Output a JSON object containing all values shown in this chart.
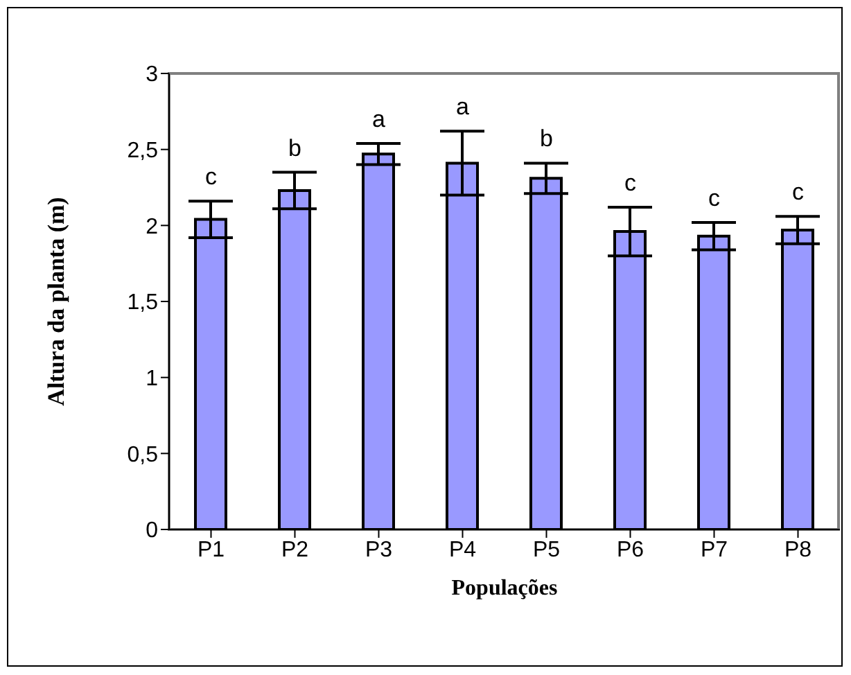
{
  "chart_data": {
    "type": "bar",
    "xlabel": "Populações",
    "ylabel": "Altura da planta (m)",
    "categories": [
      "P1",
      "P2",
      "P3",
      "P4",
      "P5",
      "P6",
      "P7",
      "P8"
    ],
    "values": [
      2.04,
      2.23,
      2.47,
      2.41,
      2.31,
      1.96,
      1.93,
      1.97
    ],
    "errors": [
      0.12,
      0.12,
      0.07,
      0.21,
      0.1,
      0.16,
      0.09,
      0.09
    ],
    "color": "#9999ff",
    "ylim": [
      0,
      3
    ],
    "yticks": [
      0,
      {
        "value": 0.5,
        "label": "0,5"
      },
      1,
      {
        "value": 1.5,
        "label": "1,5"
      },
      2,
      {
        "value": 2.5,
        "label": "2,5"
      },
      3
    ],
    "grid": false,
    "legend": false,
    "annotations": [
      {
        "text": "c",
        "x": "P1",
        "y": 2.16
      },
      {
        "text": "b",
        "x": "P2",
        "y": 2.35
      },
      {
        "text": "a",
        "x": "P3",
        "y": 2.54
      },
      {
        "text": "a",
        "x": "P4",
        "y": 2.62
      },
      {
        "text": "b",
        "x": "P5",
        "y": 2.41
      },
      {
        "text": "c",
        "x": "P6",
        "y": 2.12
      },
      {
        "text": "c",
        "x": "P7",
        "y": 2.02
      },
      {
        "text": "c",
        "x": "P8",
        "y": 2.06
      }
    ]
  }
}
